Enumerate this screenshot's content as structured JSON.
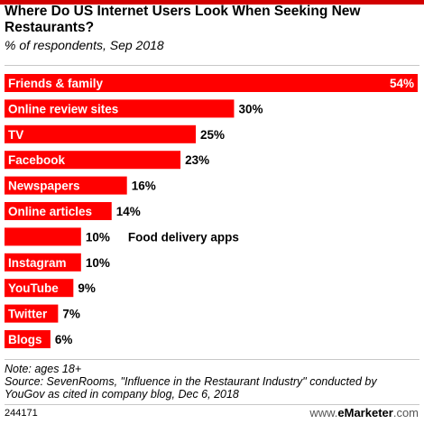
{
  "header": {
    "title": "Where Do US Internet Users Look When Seeking New Restaurants?",
    "subtitle": "% of respondents, Sep 2018"
  },
  "chart_data": {
    "type": "bar",
    "orientation": "horizontal",
    "title": "Where Do US Internet Users Look When Seeking New Restaurants?",
    "subtitle": "% of respondents, Sep 2018",
    "categories": [
      "Friends & family",
      "Online review sites",
      "TV",
      "Facebook",
      "Newspapers",
      "Online articles",
      "Food delivery apps",
      "Instagram",
      "YouTube",
      "Twitter",
      "Blogs"
    ],
    "values": [
      54,
      30,
      25,
      23,
      16,
      14,
      10,
      10,
      9,
      7,
      6
    ],
    "value_labels": [
      "54%",
      "30%",
      "25%",
      "23%",
      "16%",
      "14%",
      "10%",
      "10%",
      "9%",
      "7%",
      "6%"
    ],
    "xlim": [
      0,
      54
    ],
    "bar_color": "#ff0000",
    "grid": false
  },
  "footer": {
    "note": "Note: ages 18+",
    "source": "Source: SevenRooms, \"Influence in the Restaurant Industry\" conducted by YouGov as cited in company blog, Dec 6, 2018",
    "chart_id": "244171",
    "brand_prefix": "www.",
    "brand_name": "eMarketer",
    "brand_suffix": ".com"
  }
}
